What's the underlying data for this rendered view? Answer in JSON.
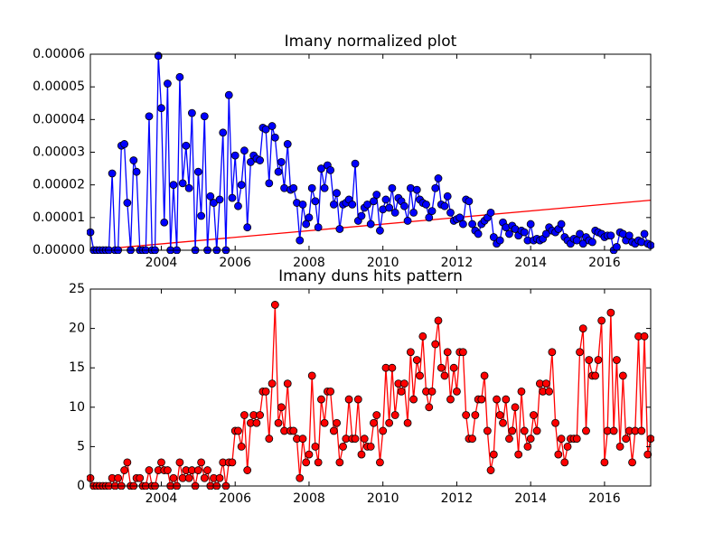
{
  "chart_data": [
    {
      "type": "line",
      "title": "Imany normalized plot",
      "x": [
        2002.08,
        2002.17,
        2002.25,
        2002.33,
        2002.42,
        2002.5,
        2002.58,
        2002.67,
        2002.75,
        2002.83,
        2002.92,
        2003.0,
        2003.08,
        2003.17,
        2003.25,
        2003.33,
        2003.42,
        2003.5,
        2003.58,
        2003.67,
        2003.75,
        2003.83,
        2003.92,
        2004.0,
        2004.08,
        2004.17,
        2004.25,
        2004.33,
        2004.42,
        2004.5,
        2004.58,
        2004.67,
        2004.75,
        2004.83,
        2004.92,
        2005.0,
        2005.08,
        2005.17,
        2005.25,
        2005.33,
        2005.42,
        2005.5,
        2005.58,
        2005.67,
        2005.75,
        2005.83,
        2005.92,
        2006.0,
        2006.08,
        2006.17,
        2006.25,
        2006.33,
        2006.42,
        2006.5,
        2006.58,
        2006.67,
        2006.75,
        2006.83,
        2006.92,
        2007.0,
        2007.08,
        2007.17,
        2007.25,
        2007.33,
        2007.42,
        2007.5,
        2007.58,
        2007.67,
        2007.75,
        2007.83,
        2007.92,
        2008.0,
        2008.08,
        2008.17,
        2008.25,
        2008.33,
        2008.42,
        2008.5,
        2008.58,
        2008.67,
        2008.75,
        2008.83,
        2008.92,
        2009.0,
        2009.08,
        2009.17,
        2009.25,
        2009.33,
        2009.42,
        2009.5,
        2009.58,
        2009.67,
        2009.75,
        2009.83,
        2009.92,
        2010.0,
        2010.08,
        2010.17,
        2010.25,
        2010.33,
        2010.42,
        2010.5,
        2010.58,
        2010.67,
        2010.75,
        2010.83,
        2010.92,
        2011.0,
        2011.08,
        2011.17,
        2011.25,
        2011.33,
        2011.42,
        2011.5,
        2011.58,
        2011.67,
        2011.75,
        2011.83,
        2011.92,
        2012.0,
        2012.08,
        2012.17,
        2012.25,
        2012.33,
        2012.42,
        2012.5,
        2012.58,
        2012.67,
        2012.75,
        2012.83,
        2012.92,
        2013.0,
        2013.08,
        2013.17,
        2013.25,
        2013.33,
        2013.42,
        2013.5,
        2013.58,
        2013.67,
        2013.75,
        2013.83,
        2013.92,
        2014.0,
        2014.08,
        2014.17,
        2014.25,
        2014.33,
        2014.42,
        2014.5,
        2014.58,
        2014.67,
        2014.75,
        2014.83,
        2014.92,
        2015.0,
        2015.08,
        2015.17,
        2015.25,
        2015.33,
        2015.42,
        2015.5,
        2015.58,
        2015.67,
        2015.75,
        2015.83,
        2015.92,
        2016.0,
        2016.08,
        2016.17,
        2016.25,
        2016.33,
        2016.42,
        2016.5,
        2016.58,
        2016.67,
        2016.75,
        2016.83,
        2016.92,
        2017.0,
        2017.08,
        2017.17,
        2017.25
      ],
      "series": [
        {
          "color": "#0000ff",
          "values": [
            5.5e-06,
            0,
            0,
            0,
            0,
            0,
            0,
            2.35e-05,
            0,
            0,
            3.2e-05,
            3.25e-05,
            1.45e-05,
            0,
            2.75e-05,
            2.4e-05,
            0,
            0,
            0,
            4.1e-05,
            0,
            0,
            5.95e-05,
            4.35e-05,
            8.5e-06,
            5.1e-05,
            0,
            2e-05,
            0,
            5.3e-05,
            2.05e-05,
            3.2e-05,
            1.9e-05,
            4.2e-05,
            0,
            2.4e-05,
            1.05e-05,
            4.1e-05,
            0,
            1.65e-05,
            1.45e-05,
            0,
            1.55e-05,
            3.6e-05,
            0,
            4.75e-05,
            1.6e-05,
            2.9e-05,
            1.35e-05,
            2e-05,
            3.05e-05,
            7e-06,
            2.7e-05,
            2.9e-05,
            2.8e-05,
            2.75e-05,
            3.75e-05,
            3.7e-05,
            2.05e-05,
            3.8e-05,
            3.45e-05,
            2.4e-05,
            2.7e-05,
            1.9e-05,
            3.25e-05,
            1.85e-05,
            1.9e-05,
            1.45e-05,
            3e-06,
            1.4e-05,
            8e-06,
            1e-05,
            1.9e-05,
            1.5e-05,
            7e-06,
            2.5e-05,
            1.9e-05,
            2.6e-05,
            2.45e-05,
            1.4e-05,
            1.75e-05,
            6.5e-06,
            1.4e-05,
            1.45e-05,
            1.55e-05,
            1.4e-05,
            2.65e-05,
            9e-06,
            1.05e-05,
            1.3e-05,
            1.4e-05,
            8e-06,
            1.5e-05,
            1.7e-05,
            6e-06,
            1.25e-05,
            1.55e-05,
            1.3e-05,
            1.9e-05,
            1.15e-05,
            1.6e-05,
            1.5e-05,
            1.35e-05,
            9e-06,
            1.9e-05,
            1.15e-05,
            1.85e-05,
            1.55e-05,
            1.45e-05,
            1.4e-05,
            1e-05,
            1.2e-05,
            1.9e-05,
            2.2e-05,
            1.4e-05,
            1.35e-05,
            1.65e-05,
            1.15e-05,
            9e-06,
            9.5e-06,
            1e-05,
            8e-06,
            1.55e-05,
            1.5e-05,
            8e-06,
            6e-06,
            5e-06,
            8e-06,
            9e-06,
            1e-05,
            1.15e-05,
            4e-06,
            2e-06,
            3e-06,
            8.5e-06,
            7e-06,
            5e-06,
            7.5e-06,
            6.5e-06,
            4.5e-06,
            6e-06,
            5.5e-06,
            3e-06,
            8e-06,
            3e-06,
            3.5e-06,
            3e-06,
            3.5e-06,
            5e-06,
            7e-06,
            6e-06,
            5.5e-06,
            6.5e-06,
            8e-06,
            4e-06,
            3e-06,
            2e-06,
            3.5e-06,
            3e-06,
            5e-06,
            2e-06,
            4e-06,
            3e-06,
            2.5e-06,
            6e-06,
            5.5e-06,
            5e-06,
            4e-06,
            4.5e-06,
            4.5e-06,
            0,
            1e-06,
            5.5e-06,
            5e-06,
            3e-06,
            4.5e-06,
            2.5e-06,
            2e-06,
            3e-06,
            2.5e-06,
            5e-06,
            2e-06,
            1.5e-06
          ]
        }
      ],
      "trend": {
        "color": "#ff0000",
        "x": [
          2002.08,
          2017.25
        ],
        "values": [
          0,
          1.53e-05
        ]
      },
      "xlim": [
        2002.08,
        2017.25
      ],
      "xticks": [
        2004,
        2006,
        2008,
        2010,
        2012,
        2014,
        2016
      ],
      "ylim": [
        0,
        6e-05
      ],
      "yticks": [
        {
          "value": 0,
          "label": "0.00000"
        },
        {
          "value": 1e-05,
          "label": "0.00001"
        },
        {
          "value": 2e-05,
          "label": "0.00002"
        },
        {
          "value": 3e-05,
          "label": "0.00003"
        },
        {
          "value": 4e-05,
          "label": "0.00004"
        },
        {
          "value": 5e-05,
          "label": "0.00005"
        },
        {
          "value": 6e-05,
          "label": "0.00006"
        }
      ]
    },
    {
      "type": "line",
      "title": "Imany duns hits pattern",
      "x": [
        2002.08,
        2002.17,
        2002.25,
        2002.33,
        2002.42,
        2002.5,
        2002.58,
        2002.67,
        2002.75,
        2002.83,
        2002.92,
        2003.0,
        2003.08,
        2003.17,
        2003.25,
        2003.33,
        2003.42,
        2003.5,
        2003.58,
        2003.67,
        2003.75,
        2003.83,
        2003.92,
        2004.0,
        2004.08,
        2004.17,
        2004.25,
        2004.33,
        2004.42,
        2004.5,
        2004.58,
        2004.67,
        2004.75,
        2004.83,
        2004.92,
        2005.0,
        2005.08,
        2005.17,
        2005.25,
        2005.33,
        2005.42,
        2005.5,
        2005.58,
        2005.67,
        2005.75,
        2005.83,
        2005.92,
        2006.0,
        2006.08,
        2006.17,
        2006.25,
        2006.33,
        2006.42,
        2006.5,
        2006.58,
        2006.67,
        2006.75,
        2006.83,
        2006.92,
        2007.0,
        2007.08,
        2007.17,
        2007.25,
        2007.33,
        2007.42,
        2007.5,
        2007.58,
        2007.67,
        2007.75,
        2007.83,
        2007.92,
        2008.0,
        2008.08,
        2008.17,
        2008.25,
        2008.33,
        2008.42,
        2008.5,
        2008.58,
        2008.67,
        2008.75,
        2008.83,
        2008.92,
        2009.0,
        2009.08,
        2009.17,
        2009.25,
        2009.33,
        2009.42,
        2009.5,
        2009.58,
        2009.67,
        2009.75,
        2009.83,
        2009.92,
        2010.0,
        2010.08,
        2010.17,
        2010.25,
        2010.33,
        2010.42,
        2010.5,
        2010.58,
        2010.67,
        2010.75,
        2010.83,
        2010.92,
        2011.0,
        2011.08,
        2011.17,
        2011.25,
        2011.33,
        2011.42,
        2011.5,
        2011.58,
        2011.67,
        2011.75,
        2011.83,
        2011.92,
        2012.0,
        2012.08,
        2012.17,
        2012.25,
        2012.33,
        2012.42,
        2012.5,
        2012.58,
        2012.67,
        2012.75,
        2012.83,
        2012.92,
        2013.0,
        2013.08,
        2013.17,
        2013.25,
        2013.33,
        2013.42,
        2013.5,
        2013.58,
        2013.67,
        2013.75,
        2013.83,
        2013.92,
        2014.0,
        2014.08,
        2014.17,
        2014.25,
        2014.33,
        2014.42,
        2014.5,
        2014.58,
        2014.67,
        2014.75,
        2014.83,
        2014.92,
        2015.0,
        2015.08,
        2015.17,
        2015.25,
        2015.33,
        2015.42,
        2015.5,
        2015.58,
        2015.67,
        2015.75,
        2015.83,
        2015.92,
        2016.0,
        2016.08,
        2016.17,
        2016.25,
        2016.33,
        2016.42,
        2016.5,
        2016.58,
        2016.67,
        2016.75,
        2016.83,
        2016.92,
        2017.0,
        2017.08,
        2017.17,
        2017.25
      ],
      "series": [
        {
          "color": "#ff0000",
          "values": [
            1,
            0,
            0,
            0,
            0,
            0,
            0,
            1,
            0,
            1,
            0,
            2,
            3,
            0,
            0,
            1,
            1,
            0,
            0,
            2,
            0,
            0,
            2,
            3,
            2,
            2,
            0,
            1,
            0,
            3,
            1,
            2,
            1,
            2,
            0,
            2,
            3,
            1,
            2,
            0,
            1,
            0,
            1,
            3,
            0,
            3,
            3,
            7,
            7,
            5,
            9,
            2,
            8,
            9,
            8,
            9,
            12,
            12,
            6,
            13,
            23,
            8,
            10,
            7,
            13,
            7,
            7,
            6,
            1,
            6,
            3,
            4,
            14,
            5,
            3,
            11,
            8,
            12,
            12,
            7,
            8,
            3,
            5,
            6,
            11,
            6,
            6,
            11,
            4,
            6,
            5,
            5,
            8,
            9,
            3,
            7,
            15,
            8,
            15,
            9,
            13,
            12,
            13,
            8,
            17,
            11,
            16,
            14,
            19,
            12,
            10,
            12,
            18,
            21,
            15,
            14,
            17,
            11,
            15,
            12,
            17,
            17,
            9,
            6,
            6,
            9,
            11,
            11,
            14,
            7,
            2,
            4,
            11,
            9,
            8,
            11,
            6,
            7,
            10,
            4,
            12,
            7,
            5,
            6,
            9,
            7,
            13,
            12,
            13,
            12,
            17,
            8,
            4,
            6,
            3,
            5,
            6,
            6,
            6,
            17,
            20,
            7,
            16,
            14,
            14,
            16,
            21,
            3,
            7,
            22,
            7,
            16,
            5,
            14,
            6,
            7,
            3,
            7,
            19,
            7,
            19,
            4,
            6
          ]
        }
      ],
      "xlim": [
        2002.08,
        2017.25
      ],
      "xticks": [
        2004,
        2006,
        2008,
        2010,
        2012,
        2014,
        2016
      ],
      "ylim": [
        0,
        25
      ],
      "yticks": [
        0,
        5,
        10,
        15,
        20,
        25
      ]
    }
  ]
}
